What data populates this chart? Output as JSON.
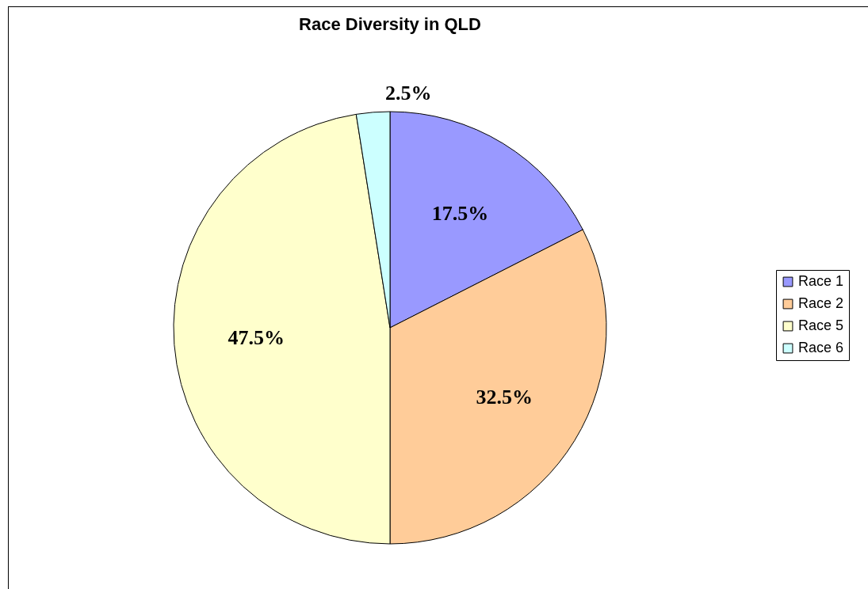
{
  "chart_data": {
    "type": "pie",
    "title": "Race Diversity in QLD",
    "categories": [
      "Race 1",
      "Race 2",
      "Race 5",
      "Race 6"
    ],
    "values": [
      17.5,
      32.5,
      47.5,
      2.5
    ],
    "colors": [
      "#9999ff",
      "#ffcc99",
      "#ffffcc",
      "#ccffff"
    ],
    "value_labels": [
      "17.5%",
      "32.5%",
      "47.5%",
      "2.5%"
    ],
    "legend": "right"
  }
}
